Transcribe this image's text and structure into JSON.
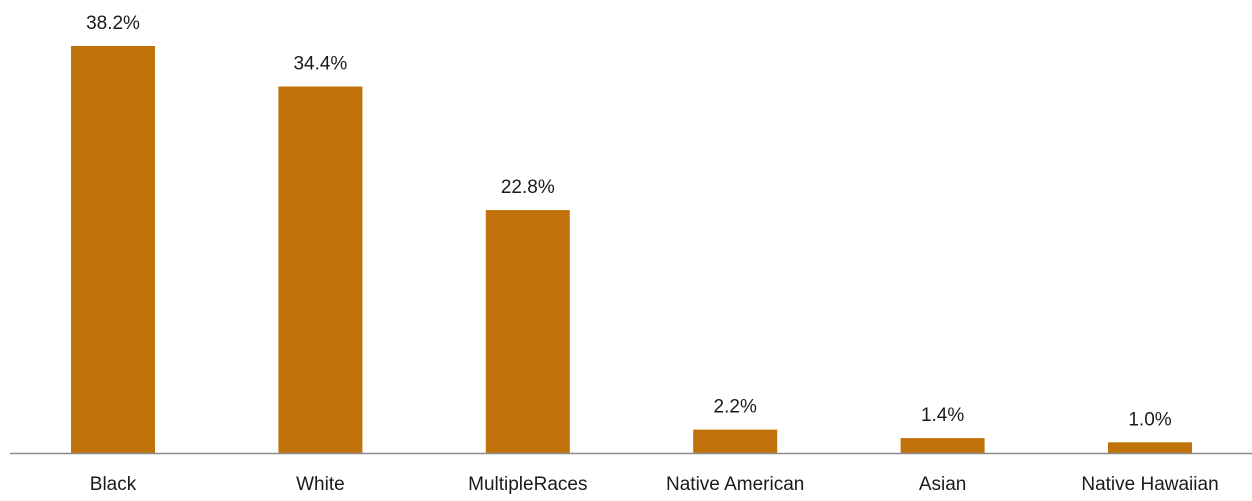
{
  "chart_data": {
    "type": "bar",
    "categories": [
      "Black",
      "White",
      "MultipleRaces",
      "Native American",
      "Asian",
      "Native Hawaiian"
    ],
    "values": [
      38.2,
      34.4,
      22.8,
      2.2,
      1.4,
      1.0
    ],
    "data_labels": [
      "38.2%",
      "34.4%",
      "22.8%",
      "2.2%",
      "1.4%",
      "1.0%"
    ],
    "title": "",
    "xlabel": "",
    "ylabel": "",
    "ylim": [
      0,
      40
    ],
    "grid": false,
    "legend": "none",
    "colors": {
      "bar": "#C0730B",
      "axis": "#8c8c8c"
    }
  }
}
